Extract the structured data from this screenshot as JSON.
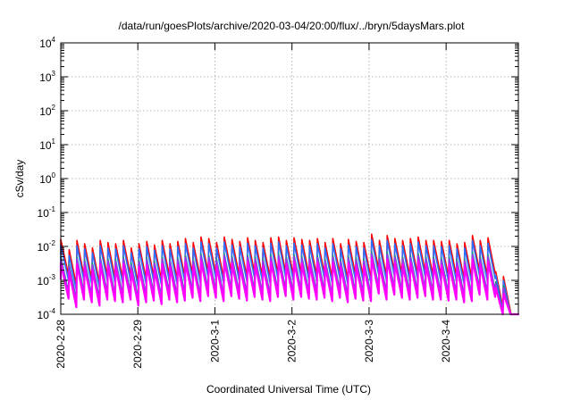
{
  "chart_data": {
    "type": "line",
    "title": "/data/run/goesPlots/archive/2020-03-04/20:00/flux/../bryn/5daysMars.plot",
    "xlabel": "Coordinated Universal Time (UTC)",
    "ylabel": "cSv/day",
    "yscale": "log",
    "ylim": [
      0.0001,
      10000
    ],
    "yticks": [
      {
        "value": 0.0001,
        "base": "10",
        "exp": "-4"
      },
      {
        "value": 0.001,
        "base": "10",
        "exp": "-3"
      },
      {
        "value": 0.01,
        "base": "10",
        "exp": "-2"
      },
      {
        "value": 0.1,
        "base": "10",
        "exp": "-1"
      },
      {
        "value": 1,
        "base": "10",
        "exp": "0"
      },
      {
        "value": 10,
        "base": "10",
        "exp": "1"
      },
      {
        "value": 100,
        "base": "10",
        "exp": "2"
      },
      {
        "value": 1000,
        "base": "10",
        "exp": "3"
      },
      {
        "value": 10000,
        "base": "10",
        "exp": "4"
      }
    ],
    "xlim": [
      "2020-02-28",
      "2020-03-04T22:30"
    ],
    "xticks": [
      "2020-2-28",
      "2020-2-29",
      "2020-3-1",
      "2020-3-2",
      "2020-3-3",
      "2020-3-4"
    ],
    "grid": true,
    "series": [
      {
        "color": "#ff0000",
        "peaks": [
          0.016,
          0.008,
          0.015,
          0.012,
          0.009,
          0.015,
          0.013,
          0.012,
          0.015,
          0.009,
          0.012,
          0.014,
          0.011,
          0.015,
          0.012,
          0.014,
          0.017,
          0.013,
          0.019,
          0.017,
          0.013,
          0.019,
          0.016,
          0.014,
          0.018,
          0.015,
          0.013,
          0.018,
          0.019,
          0.015,
          0.018,
          0.016,
          0.015,
          0.017,
          0.013,
          0.017,
          0.012,
          0.016,
          0.014,
          0.013,
          0.023,
          0.015,
          0.021,
          0.017,
          0.015,
          0.017,
          0.019,
          0.015,
          0.015,
          0.014,
          0.015,
          0.012,
          0.013,
          0.021,
          0.015,
          0.018,
          0.0018,
          0.0013,
          0.0001
        ]
      },
      {
        "color": "#2a6fff",
        "peaks": [
          0.011,
          0.0055,
          0.0105,
          0.0085,
          0.0065,
          0.0105,
          0.009,
          0.0085,
          0.0105,
          0.0065,
          0.0085,
          0.01,
          0.0078,
          0.0105,
          0.0085,
          0.01,
          0.012,
          0.009,
          0.0135,
          0.012,
          0.009,
          0.0135,
          0.011,
          0.01,
          0.0125,
          0.0105,
          0.009,
          0.0125,
          0.0135,
          0.0105,
          0.0125,
          0.011,
          0.0105,
          0.012,
          0.009,
          0.012,
          0.0085,
          0.011,
          0.01,
          0.009,
          0.016,
          0.0105,
          0.015,
          0.012,
          0.0105,
          0.012,
          0.0135,
          0.0105,
          0.0105,
          0.01,
          0.0105,
          0.0085,
          0.009,
          0.015,
          0.0105,
          0.0125,
          0.0014,
          0.001,
          0.0001
        ]
      },
      {
        "color": "#00aa66",
        "peaks": [
          0.005,
          0.003,
          0.0048,
          0.004,
          0.0032,
          0.0048,
          0.0042,
          0.004,
          0.0048,
          0.0032,
          0.004,
          0.0045,
          0.0036,
          0.0048,
          0.004,
          0.0045,
          0.0054,
          0.0042,
          0.006,
          0.0054,
          0.0042,
          0.006,
          0.005,
          0.0045,
          0.0056,
          0.0048,
          0.0042,
          0.0056,
          0.006,
          0.0048,
          0.0056,
          0.005,
          0.0048,
          0.0054,
          0.0042,
          0.0054,
          0.004,
          0.005,
          0.0045,
          0.0042,
          0.007,
          0.0048,
          0.0066,
          0.0054,
          0.0048,
          0.0054,
          0.006,
          0.0048,
          0.0048,
          0.0045,
          0.0048,
          0.004,
          0.0042,
          0.0066,
          0.0048,
          0.0056,
          0.0009,
          0.0007,
          0.0001
        ]
      },
      {
        "color": "#9933ff",
        "peaks": [
          0.0045,
          0.0026,
          0.0043,
          0.0036,
          0.0028,
          0.0043,
          0.0038,
          0.0036,
          0.0043,
          0.0028,
          0.0036,
          0.004,
          0.0032,
          0.0043,
          0.0036,
          0.004,
          0.0048,
          0.0038,
          0.0054,
          0.0048,
          0.0038,
          0.0054,
          0.0045,
          0.004,
          0.005,
          0.0043,
          0.0038,
          0.005,
          0.0054,
          0.0043,
          0.005,
          0.0045,
          0.0043,
          0.0048,
          0.0038,
          0.0048,
          0.0036,
          0.0045,
          0.004,
          0.0038,
          0.0062,
          0.0043,
          0.0058,
          0.0048,
          0.0043,
          0.0048,
          0.0054,
          0.0043,
          0.0043,
          0.004,
          0.0043,
          0.0036,
          0.0038,
          0.0058,
          0.0043,
          0.005,
          0.0008,
          0.0006,
          0.0001
        ]
      },
      {
        "color": "#ff00ff",
        "peaks": [
          0.0032,
          0.0018,
          0.003,
          0.0025,
          0.002,
          0.003,
          0.0027,
          0.0025,
          0.003,
          0.002,
          0.0025,
          0.0028,
          0.0022,
          0.003,
          0.0025,
          0.0028,
          0.0034,
          0.0027,
          0.0038,
          0.0034,
          0.0027,
          0.0038,
          0.0032,
          0.0028,
          0.0036,
          0.003,
          0.0027,
          0.0036,
          0.0038,
          0.003,
          0.0036,
          0.0032,
          0.003,
          0.0034,
          0.0027,
          0.0034,
          0.0025,
          0.0032,
          0.0028,
          0.0027,
          0.0045,
          0.003,
          0.0042,
          0.0034,
          0.003,
          0.0034,
          0.0038,
          0.003,
          0.003,
          0.0028,
          0.003,
          0.0025,
          0.0027,
          0.0042,
          0.003,
          0.0036,
          0.0006,
          0.0004,
          0.0001
        ]
      }
    ]
  }
}
